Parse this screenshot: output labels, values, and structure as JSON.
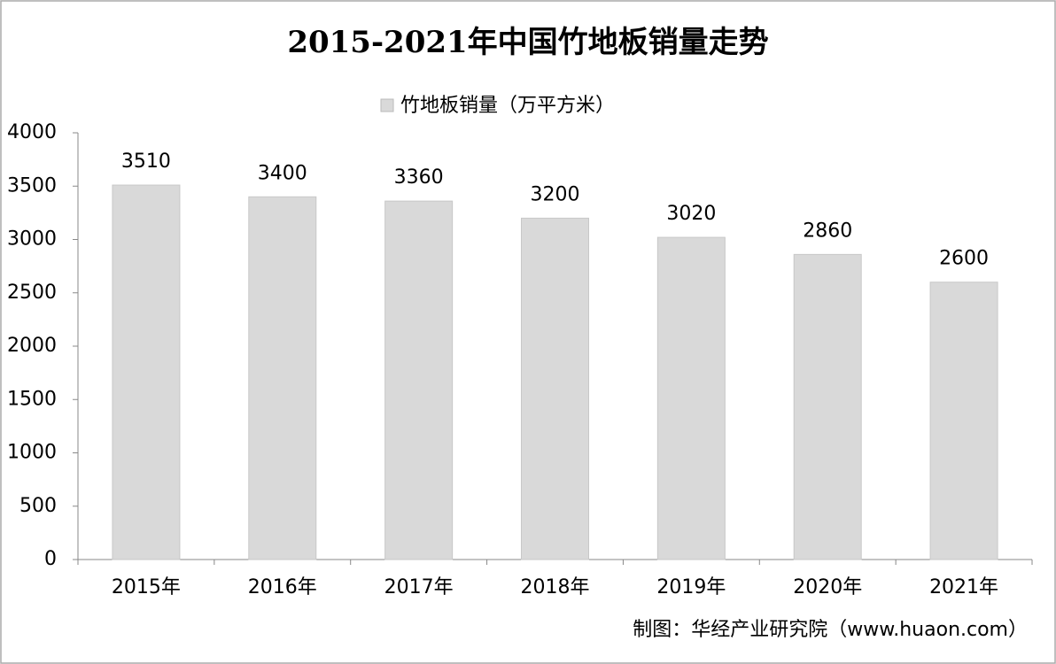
{
  "chart_data": {
    "type": "bar",
    "title": "2015-2021年中国竹地板销量走势",
    "categories": [
      "2015年",
      "2016年",
      "2017年",
      "2018年",
      "2019年",
      "2020年",
      "2021年"
    ],
    "series": [
      {
        "name": "竹地板销量（万平方米）",
        "color": "#d9d9d9",
        "values": [
          3510,
          3400,
          3360,
          3200,
          3020,
          2860,
          2600
        ]
      }
    ],
    "ylim": [
      0,
      4000
    ],
    "yticks": [
      0,
      500,
      1000,
      1500,
      2000,
      2500,
      3000,
      3500,
      4000
    ],
    "grid": false,
    "legend": "top",
    "source": "制图：华经产业研究院（www.huaon.com）"
  }
}
